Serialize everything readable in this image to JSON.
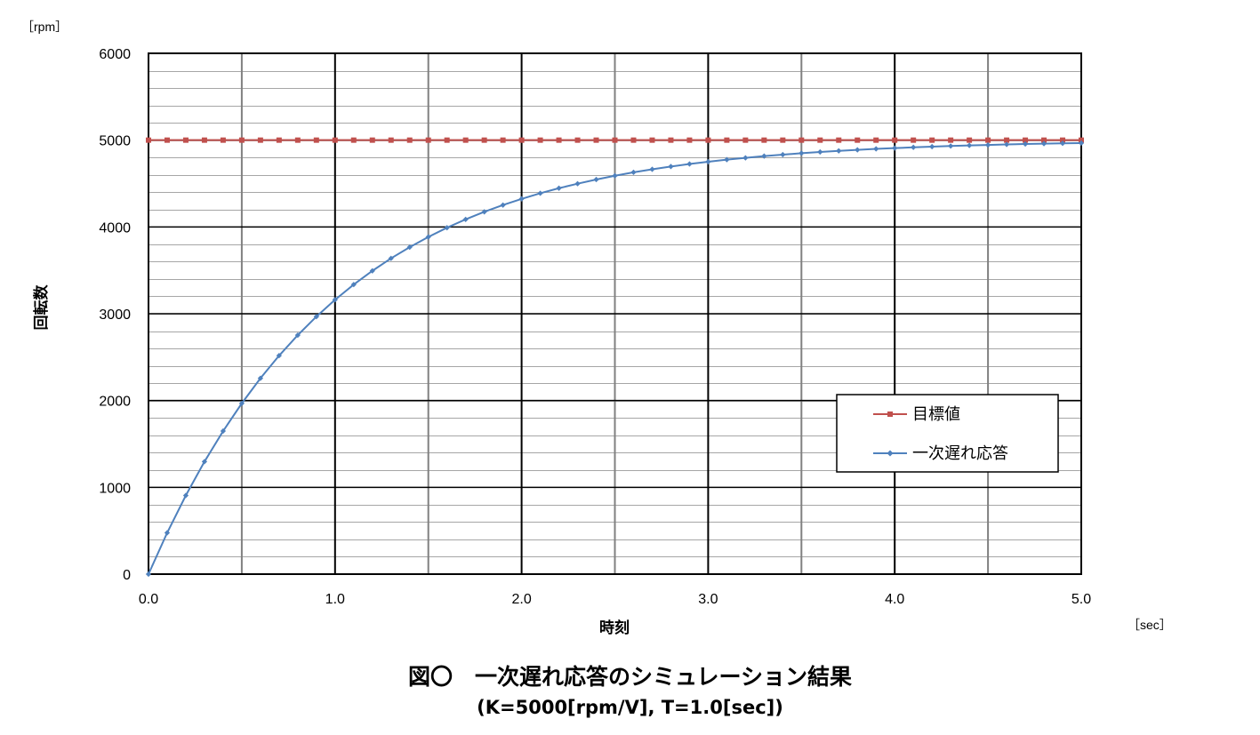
{
  "chart_data": {
    "type": "line",
    "y_unit": "［rpm］",
    "x_unit": "［sec］",
    "xlabel": "時刻",
    "ylabel": "回転数",
    "xlim": [
      0,
      5
    ],
    "ylim": [
      0,
      6000
    ],
    "x_tick_labels": [
      "0.0",
      "1.0",
      "2.0",
      "3.0",
      "4.0",
      "5.0"
    ],
    "y_tick_labels": [
      "0",
      "1000",
      "2000",
      "3000",
      "4000",
      "5000",
      "6000"
    ],
    "grid": true,
    "legend_position": "lower-right",
    "x": [
      0.0,
      0.1,
      0.2,
      0.3,
      0.4,
      0.5,
      0.6,
      0.7,
      0.8,
      0.9,
      1.0,
      1.1,
      1.2,
      1.3,
      1.4,
      1.5,
      1.6,
      1.7,
      1.8,
      1.9,
      2.0,
      2.1,
      2.2,
      2.3,
      2.4,
      2.5,
      2.6,
      2.7,
      2.8,
      2.9,
      3.0,
      3.1,
      3.2,
      3.3,
      3.4,
      3.5,
      3.6,
      3.7,
      3.8,
      3.9,
      4.0,
      4.1,
      4.2,
      4.3,
      4.4,
      4.5,
      4.6,
      4.7,
      4.8,
      4.9,
      5.0
    ],
    "series": [
      {
        "name": "目標値",
        "color": "#c0504d",
        "marker": "square",
        "values": [
          5000,
          5000,
          5000,
          5000,
          5000,
          5000,
          5000,
          5000,
          5000,
          5000,
          5000,
          5000,
          5000,
          5000,
          5000,
          5000,
          5000,
          5000,
          5000,
          5000,
          5000,
          5000,
          5000,
          5000,
          5000,
          5000,
          5000,
          5000,
          5000,
          5000,
          5000,
          5000,
          5000,
          5000,
          5000,
          5000,
          5000,
          5000,
          5000,
          5000,
          5000,
          5000,
          5000,
          5000,
          5000,
          5000,
          5000,
          5000,
          5000,
          5000,
          5000
        ]
      },
      {
        "name": "一次遅れ応答",
        "color": "#4f81bd",
        "marker": "diamond",
        "values": [
          0,
          476,
          906,
          1296,
          1648,
          1967,
          2256,
          2517,
          2753,
          2967,
          3161,
          3336,
          3494,
          3638,
          3767,
          3884,
          3991,
          4087,
          4174,
          4252,
          4323,
          4388,
          4446,
          4498,
          4546,
          4590,
          4629,
          4664,
          4696,
          4725,
          4751,
          4775,
          4796,
          4816,
          4833,
          4849,
          4863,
          4876,
          4888,
          4899,
          4908,
          4917,
          4925,
          4932,
          4939,
          4944,
          4950,
          4955,
          4959,
          4963,
          4966
        ]
      }
    ]
  },
  "caption": {
    "line1": "図〇　一次遅れ応答のシミュレーション結果",
    "line2": "(K=5000[rpm/V], T=1.0[sec])"
  }
}
